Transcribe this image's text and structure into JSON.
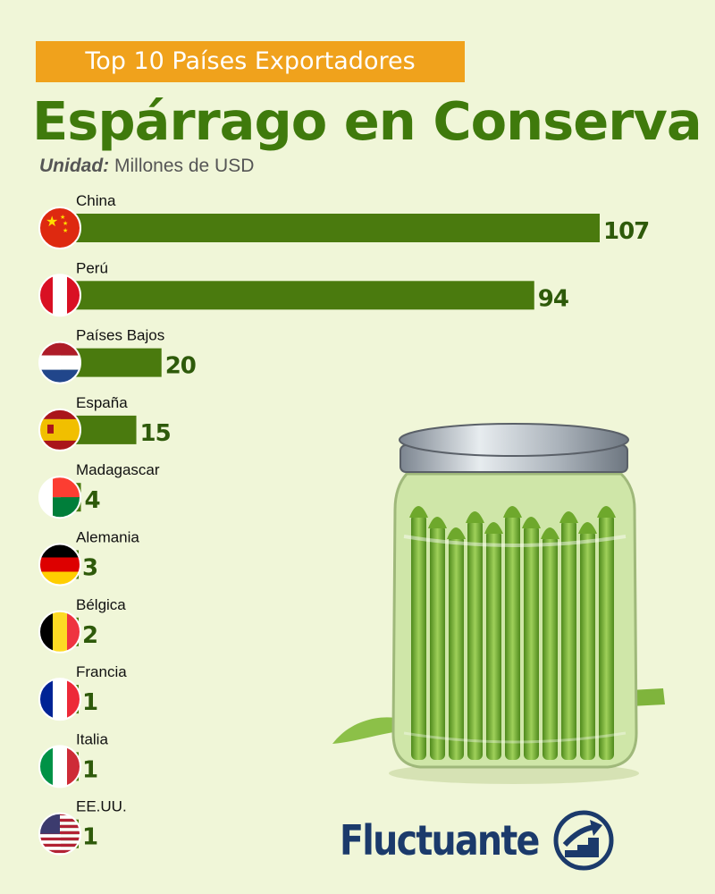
{
  "header": {
    "subtitle": "Top 10 Países Exportadores",
    "title": "Espárrago en Conserva",
    "unit_label": "Unidad:",
    "unit_value": "Millones de USD"
  },
  "brand": {
    "name": "Fluctuante",
    "icon": "trend-up-arrow-icon"
  },
  "illustration": "asparagus-jar-illustration",
  "colors": {
    "bar": "#4a7a0e",
    "value_text": "#2e5a0a",
    "title": "#3f7a0c",
    "subtitle_bg": "#f0a21c",
    "background": "#f0f6d8"
  },
  "chart_data": {
    "type": "bar",
    "orientation": "horizontal",
    "title": "Espárrago en Conserva",
    "subtitle": "Top 10 Países Exportadores",
    "unit": "Millones de USD",
    "categories": [
      "China",
      "Perú",
      "Países Bajos",
      "España",
      "Madagascar",
      "Alemania",
      "Bélgica",
      "Francia",
      "Italia",
      "EE.UU."
    ],
    "values": [
      107,
      94,
      20,
      15,
      4,
      3,
      2,
      1,
      1,
      1
    ],
    "flags": [
      "china-flag-icon",
      "peru-flag-icon",
      "netherlands-flag-icon",
      "spain-flag-icon",
      "madagascar-flag-icon",
      "germany-flag-icon",
      "belgium-flag-icon",
      "france-flag-icon",
      "italy-flag-icon",
      "usa-flag-icon"
    ],
    "xlim": [
      0,
      107
    ],
    "grid": false,
    "legend": "none"
  }
}
